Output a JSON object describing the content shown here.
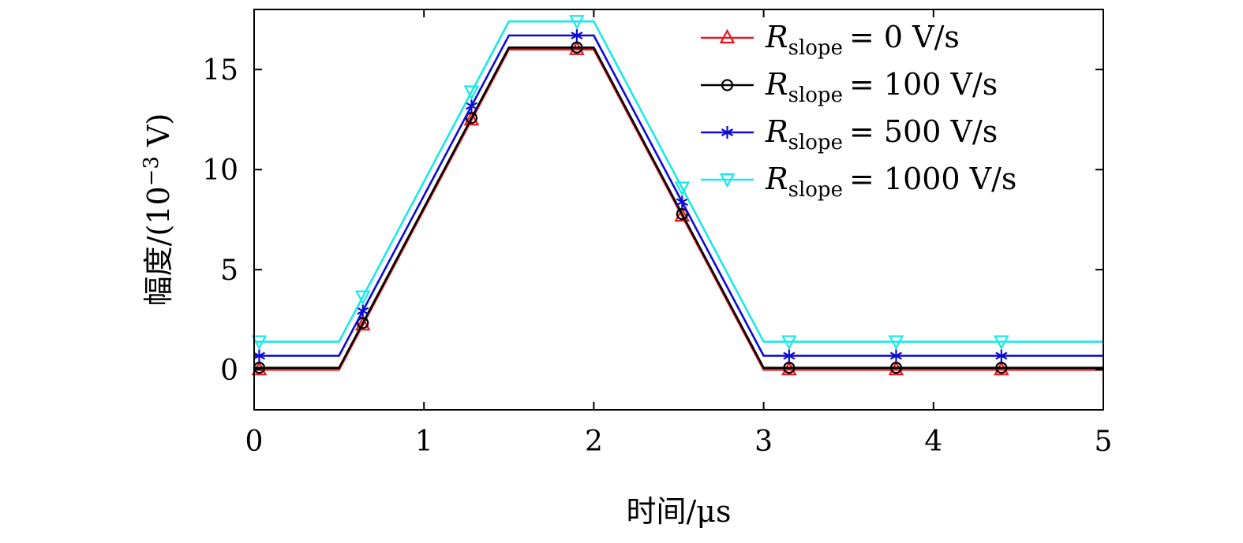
{
  "chart_data": {
    "type": "line",
    "title": "",
    "xlabel": "时间/μs",
    "ylabel": "幅度/(10",
    "ylabel_exp": "−3",
    "ylabel_end": " V)",
    "xlim": [
      0,
      5
    ],
    "ylim": [
      -2,
      18
    ],
    "xticks": [
      0,
      1,
      2,
      3,
      4,
      5
    ],
    "yticks": [
      0,
      5,
      10,
      15
    ],
    "xtick_labels": [
      "0",
      "1",
      "2",
      "3",
      "4",
      "5"
    ],
    "ytick_labels": [
      "0",
      "5",
      "10",
      "15"
    ],
    "grid": false,
    "legend_position": "top-right",
    "legend_prefix": "R",
    "legend_sub": "slope",
    "series": [
      {
        "name": "= 0 V/s",
        "color": "#e8161b",
        "marker": "triangle-up",
        "offset": 0.0,
        "peak": 16.0,
        "markers_x": [
          0.03,
          0.64,
          1.28,
          1.9,
          2.52,
          3.15,
          3.78,
          4.4
        ]
      },
      {
        "name": "= 100 V/s",
        "color": "#000000",
        "marker": "circle",
        "offset": 0.1,
        "peak": 16.1,
        "markers_x": [
          0.03,
          0.64,
          1.28,
          1.9,
          2.52,
          3.15,
          3.78,
          4.4
        ]
      },
      {
        "name": "= 500 V/s",
        "color": "#0b0bd6",
        "marker": "star",
        "offset": 0.7,
        "peak": 16.7,
        "markers_x": [
          0.03,
          0.64,
          1.28,
          1.9,
          2.52,
          3.15,
          3.78,
          4.4
        ]
      },
      {
        "name": "= 1000 V/s",
        "color": "#19e8e8",
        "marker": "triangle-down",
        "offset": 1.4,
        "peak": 17.4,
        "markers_x": [
          0.03,
          0.64,
          1.28,
          1.9,
          2.52,
          3.15,
          3.78,
          4.4
        ]
      }
    ],
    "pulse_shape": {
      "rise_start": 0.5,
      "rise_end": 1.5,
      "fall_start": 2.0,
      "fall_end": 3.0
    }
  }
}
